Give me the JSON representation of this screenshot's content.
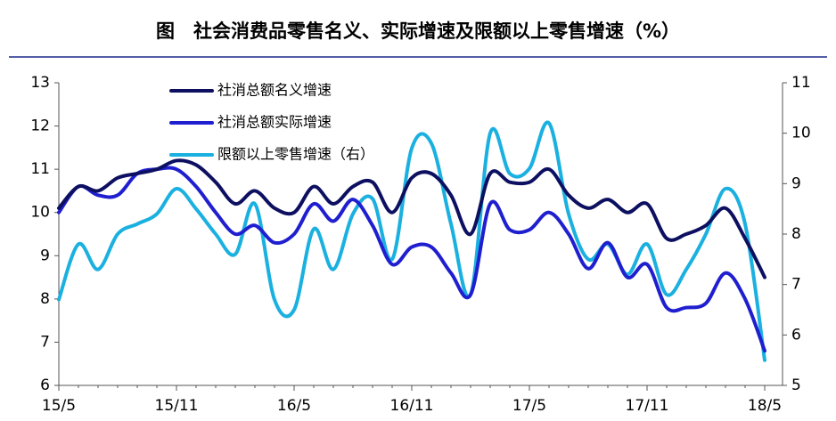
{
  "chart_data": {
    "type": "line",
    "title": "图　社会消费品零售名义、实际增速及限额以上零售增速（%）",
    "categories": [
      "15/5",
      null,
      null,
      null,
      null,
      null,
      "15/11",
      null,
      null,
      null,
      null,
      null,
      "16/5",
      null,
      null,
      null,
      null,
      null,
      "16/11",
      null,
      null,
      null,
      null,
      null,
      "17/5",
      null,
      null,
      null,
      null,
      null,
      "17/11",
      null,
      null,
      null,
      null,
      null,
      "18/5"
    ],
    "series": [
      {
        "name": "社消总额名义增速",
        "color": "#0d1060",
        "values": [
          10.1,
          10.6,
          10.5,
          10.8,
          10.9,
          11.0,
          11.2,
          11.1,
          10.7,
          10.2,
          10.5,
          10.1,
          10.0,
          10.6,
          10.2,
          10.6,
          10.7,
          10.0,
          10.8,
          10.9,
          10.4,
          9.5,
          10.9,
          10.7,
          10.7,
          11.0,
          10.4,
          10.1,
          10.3,
          10.0,
          10.2,
          9.4,
          9.5,
          9.7,
          10.1,
          9.4,
          8.5
        ]
      },
      {
        "name": "社消总额实际增速",
        "color": "#1f1fd0",
        "values": [
          10.0,
          10.6,
          10.4,
          10.4,
          10.9,
          11.0,
          11.0,
          10.6,
          10.0,
          9.5,
          9.7,
          9.3,
          9.5,
          10.2,
          9.8,
          10.3,
          9.7,
          8.8,
          9.2,
          9.2,
          8.6,
          8.1,
          10.2,
          9.6,
          9.6,
          10.0,
          9.5,
          8.7,
          9.3,
          8.5,
          8.8,
          7.8,
          7.8,
          7.9,
          8.6,
          8.0,
          6.8
        ]
      },
      {
        "name": "限额以上零售增速（右）",
        "color": "#1ab0e0",
        "axis": "y2",
        "values": [
          6.7,
          7.8,
          7.3,
          8.0,
          8.2,
          8.4,
          8.9,
          8.5,
          8.0,
          7.6,
          8.6,
          6.7,
          6.5,
          8.1,
          7.3,
          8.4,
          8.7,
          7.5,
          9.7,
          9.8,
          8.2,
          6.8,
          10.0,
          9.2,
          9.3,
          10.2,
          8.4,
          7.5,
          7.8,
          7.2,
          7.8,
          6.8,
          7.3,
          8.0,
          8.9,
          8.2,
          5.5
        ]
      }
    ],
    "ylim": [
      6,
      13
    ],
    "yticks": [
      6,
      7,
      8,
      9,
      10,
      11,
      12,
      13
    ],
    "y2lim": [
      5,
      11
    ],
    "y2ticks": [
      5,
      6,
      7,
      8,
      9,
      10,
      11
    ],
    "legend": "upper left"
  }
}
